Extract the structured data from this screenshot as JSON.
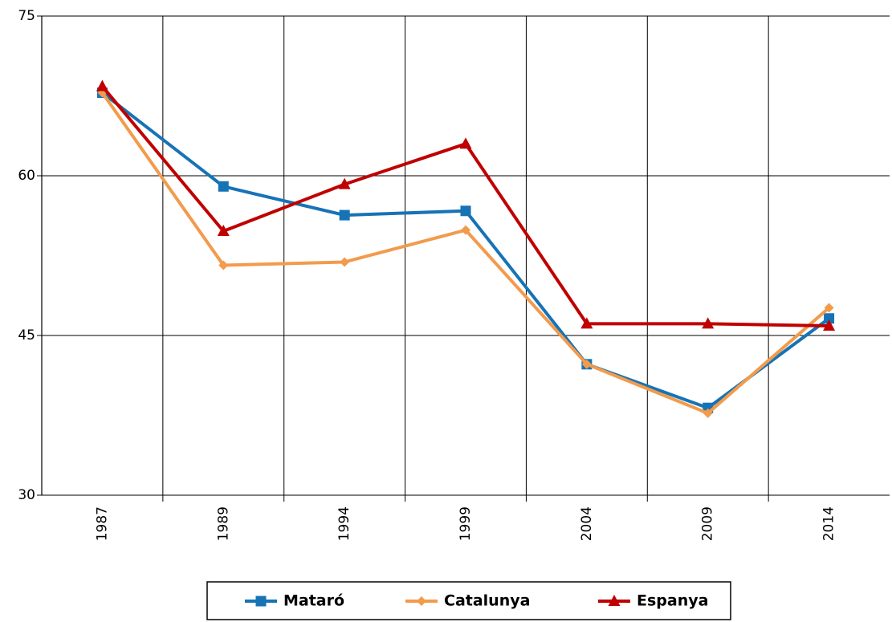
{
  "chart_data": {
    "type": "line",
    "categories": [
      "1987",
      "1989",
      "1994",
      "1999",
      "2004",
      "2009",
      "2014"
    ],
    "series": [
      {
        "name": "Mataró",
        "color": "#1673b6",
        "marker": "square",
        "values": [
          67.8,
          59.0,
          56.3,
          56.7,
          42.3,
          38.2,
          46.6
        ]
      },
      {
        "name": "Catalunya",
        "color": "#f29b4c",
        "marker": "diamond",
        "values": [
          67.8,
          51.6,
          51.9,
          54.9,
          42.3,
          37.7,
          47.6
        ]
      },
      {
        "name": "Espanya",
        "color": "#c00000",
        "marker": "triangle",
        "values": [
          68.4,
          54.8,
          59.2,
          63.0,
          46.1,
          46.1,
          45.9
        ]
      }
    ],
    "ylim": [
      30,
      75
    ],
    "yticks": [
      30,
      45,
      60,
      75
    ],
    "grid": true,
    "legend": "bottom"
  }
}
